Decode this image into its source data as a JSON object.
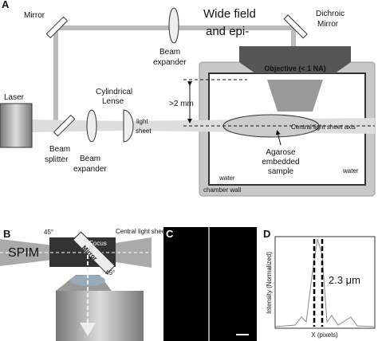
{
  "panel_a": {
    "label": "A",
    "mirror": "Mirror",
    "wide_field_1": "Wide field",
    "wide_field_2": "and epi-",
    "dichroic_1": "Dichroic",
    "dichroic_2": "Mirror",
    "top_expander_1": "Beam",
    "top_expander_2": "expander",
    "objective": "Objective (< 1 NA)",
    "laser": "Laser",
    "cyl_lens_1": "Cylindrical",
    "cyl_lens_2": "Lense",
    "distance": ">2 mm",
    "sheet_1": "light",
    "sheet_2": "sheet",
    "axis": "Central light sheet axis",
    "splitter_1": "Beam",
    "splitter_2": "splitter",
    "expander_1": "Beam",
    "expander_2": "expander",
    "sample_1": "Agarose",
    "sample_2": "embedded",
    "sample_3": "sample",
    "water_left": "water",
    "water_right": "water",
    "chamber_wall": "chamber wall"
  },
  "panel_b": {
    "label": "B",
    "spim": "SPIM",
    "angle_top": "45°",
    "angle_bottom": "45°",
    "focus": "Focus",
    "mirror": "Mirror",
    "axis": "Central light sheet axis"
  },
  "panel_c": {
    "label": "C"
  },
  "panel_d": {
    "label": "D",
    "y_label": "Intensity (Normalized)",
    "x_label": "X (pixels)",
    "width": "2.3 μm"
  }
}
